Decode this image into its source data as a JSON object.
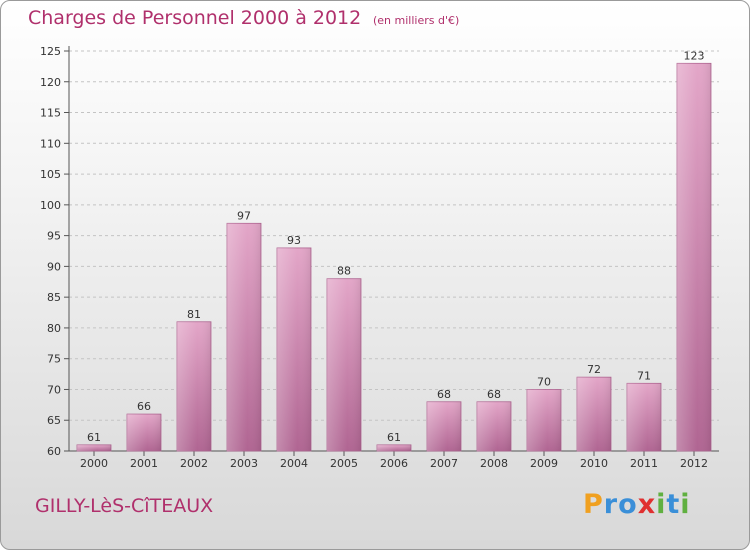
{
  "chart_data": {
    "type": "bar",
    "title": "Charges de Personnel 2000 à 2012",
    "subtitle": "(en milliers d'€)",
    "categories": [
      "2000",
      "2001",
      "2002",
      "2003",
      "2004",
      "2005",
      "2006",
      "2007",
      "2008",
      "2009",
      "2010",
      "2011",
      "2012"
    ],
    "values": [
      61,
      66,
      81,
      97,
      93,
      88,
      61,
      68,
      68,
      70,
      72,
      71,
      123
    ],
    "ylim": [
      60,
      125
    ],
    "yticks": [
      60,
      65,
      70,
      75,
      80,
      85,
      90,
      95,
      100,
      105,
      110,
      115,
      120,
      125
    ],
    "grid": true,
    "bar_color": "#c77aa5"
  },
  "commune": "GILLY-LèS-CîTEAUX",
  "logo": {
    "letters": [
      "P",
      "r",
      "o",
      "x",
      "i",
      "t",
      "i"
    ],
    "colors": [
      "#f0a020",
      "#3a8fd8",
      "#3a8fd8",
      "#e03030",
      "#60b040",
      "#3a8fd8",
      "#60b040"
    ]
  }
}
